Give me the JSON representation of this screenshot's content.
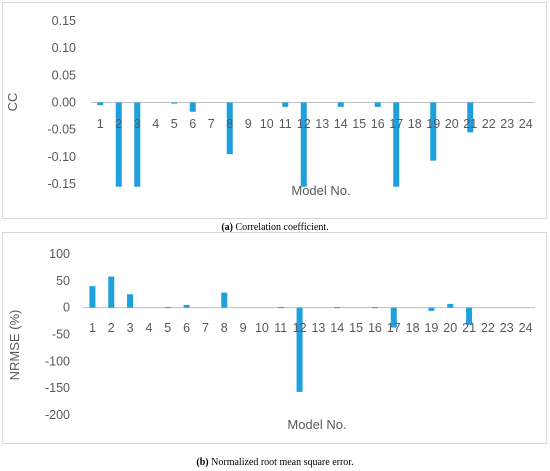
{
  "chart_data": [
    {
      "type": "bar",
      "caption_label": "(a)",
      "caption_text": "Correlation coefficient.",
      "xlabel": "Model No.",
      "ylabel": "CC",
      "ylim": [
        -0.15,
        0.15
      ],
      "yticks": [
        0.15,
        0.1,
        0.05,
        0.0,
        -0.05,
        -0.1,
        -0.15
      ],
      "ytick_labels": [
        "0.15",
        "0.10",
        "0.05",
        "0.00",
        "-0.05",
        "-0.10",
        "-0.15"
      ],
      "categories": [
        "1",
        "2",
        "3",
        "4",
        "5",
        "6",
        "7",
        "8",
        "9",
        "10",
        "11",
        "12",
        "13",
        "14",
        "15",
        "16",
        "17",
        "18",
        "19",
        "20",
        "21",
        "22",
        "23",
        "24"
      ],
      "values": [
        -0.005,
        -0.155,
        -0.155,
        0,
        -0.002,
        -0.017,
        0,
        -0.095,
        0,
        0,
        -0.008,
        -0.155,
        0,
        -0.008,
        0,
        -0.008,
        -0.155,
        0,
        -0.107,
        0,
        -0.055,
        0,
        0,
        0
      ],
      "bar_color": "#1f9fdc",
      "grid": false
    },
    {
      "type": "bar",
      "caption_label": "(b)",
      "caption_text": "Normalized root mean square error.",
      "xlabel": "Model No.",
      "ylabel": "NRMSE  (%)",
      "ylim": [
        -200,
        100
      ],
      "yticks": [
        100,
        50,
        0,
        -50,
        -100,
        -150,
        -200
      ],
      "ytick_labels": [
        "100",
        "50",
        "0",
        "-50",
        "-100",
        "-150",
        "-200"
      ],
      "categories": [
        "1",
        "2",
        "3",
        "4",
        "5",
        "6",
        "7",
        "8",
        "9",
        "10",
        "11",
        "12",
        "13",
        "14",
        "15",
        "16",
        "17",
        "18",
        "19",
        "20",
        "21",
        "22",
        "23",
        "24"
      ],
      "values": [
        40,
        58,
        25,
        0,
        1,
        5,
        0,
        28,
        0,
        0,
        1,
        -157,
        0,
        1,
        0,
        1,
        -37,
        0,
        -6,
        7,
        -32,
        0,
        0,
        0
      ],
      "bar_color": "#1f9fdc",
      "grid": false
    }
  ]
}
